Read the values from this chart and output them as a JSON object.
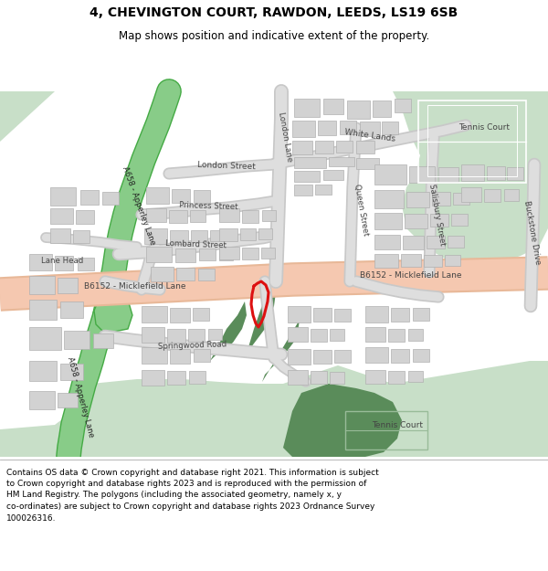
{
  "title": "4, CHEVINGTON COURT, RAWDON, LEEDS, LS19 6SB",
  "subtitle": "Map shows position and indicative extent of the property.",
  "footer": "Contains OS data © Crown copyright and database right 2021. This information is subject\nto Crown copyright and database rights 2023 and is reproduced with the permission of\nHM Land Registry. The polygons (including the associated geometry, namely x, y\nco-ordinates) are subject to Crown copyright and database rights 2023 Ordnance Survey\n100026316.",
  "bg_white": "#ffffff",
  "road_salmon": "#f5c8b0",
  "road_salmon_edge": "#e8b898",
  "road_gray": "#dedede",
  "road_gray_edge": "#c8c8c8",
  "green_light": "#c8dfc8",
  "green_dark": "#5a8c5a",
  "green_road_fill": "#88cc88",
  "green_road_edge": "#44aa44",
  "property_red": "#dd1111",
  "label_color": "#444444",
  "title_size": 10,
  "subtitle_size": 8.5,
  "footer_size": 6.5,
  "a658_label": "A658 - Apperley Lane",
  "b6152_label": "B6152 - Micklefield Lane",
  "streets": [
    "London Street",
    "London Lane",
    "White Lands",
    "Princess Street",
    "Lombard Street",
    "Queen Street",
    "Salisbury Street",
    "Buckstone Drive",
    "Springwood Road",
    "Lane Head",
    "Tennis Court",
    "Tennis Court"
  ]
}
